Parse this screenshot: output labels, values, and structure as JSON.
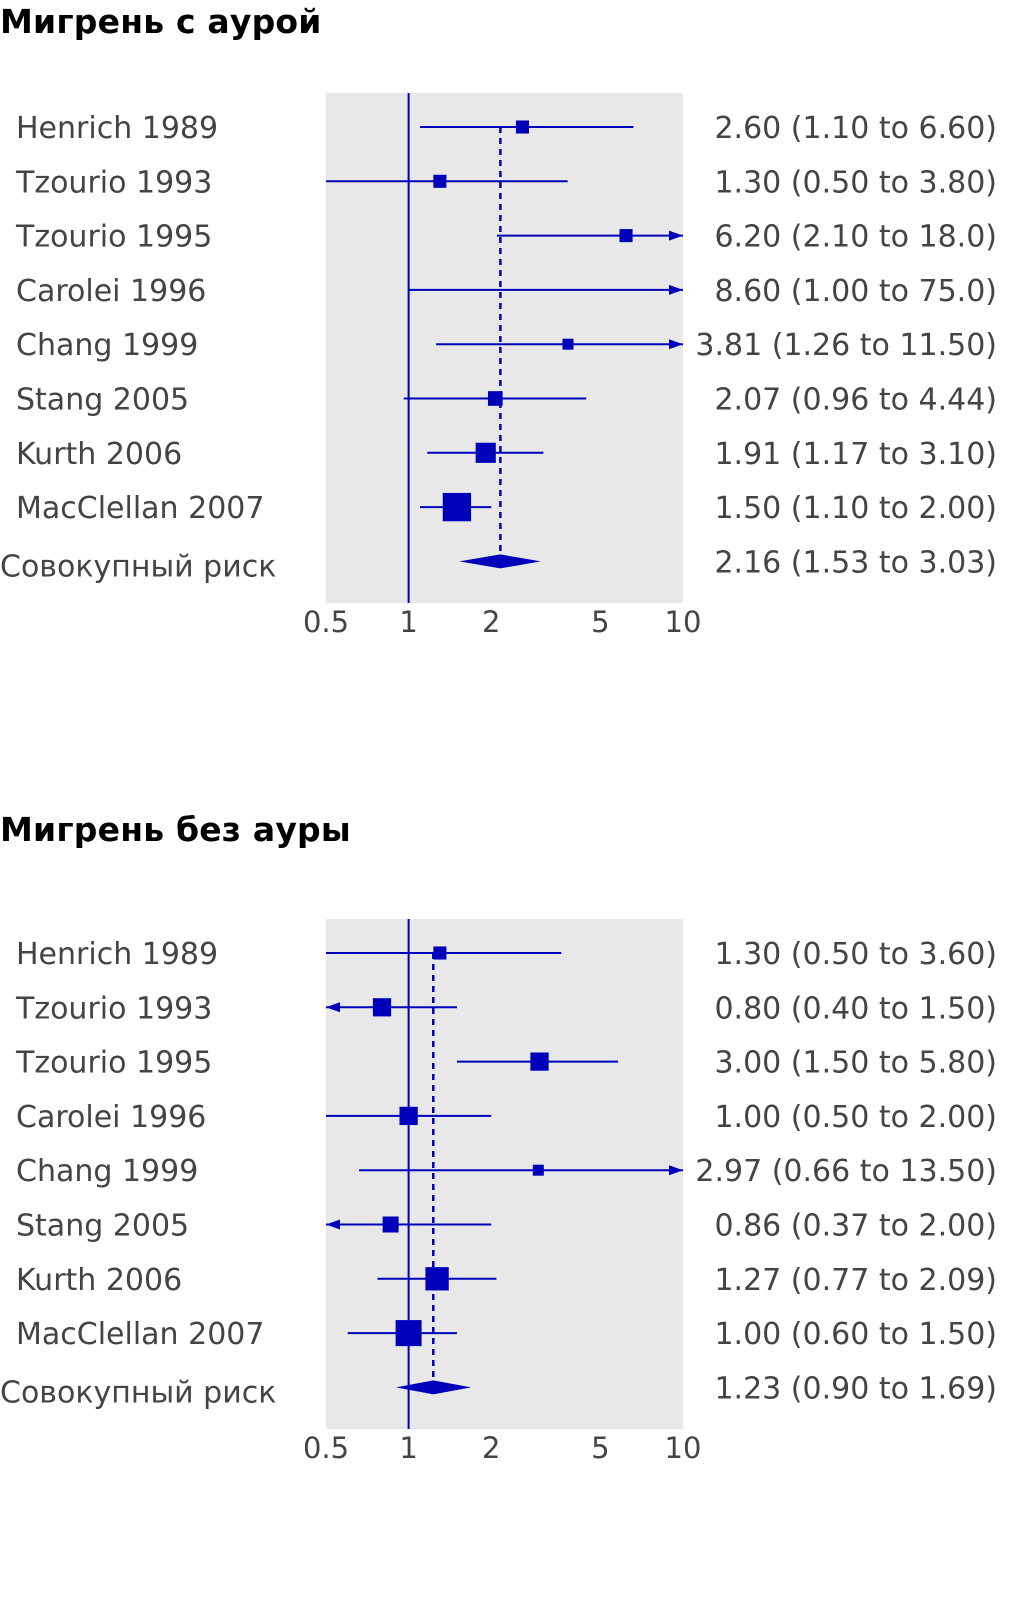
{
  "chart_data": [
    {
      "type": "forest",
      "title": "Мигрень с аурой",
      "x_scale": "log",
      "xlim": [
        0.5,
        10
      ],
      "xticks": [
        0.5,
        1,
        2,
        5,
        10
      ],
      "xtick_labels": [
        "0.5",
        "1",
        "2",
        "5",
        "10"
      ],
      "reference_line": 1,
      "pooled_label": "Совокупный риск",
      "studies": [
        {
          "name": "Henrich 1989",
          "estimate": 2.6,
          "lower": 1.1,
          "upper": 6.6,
          "weight": 2,
          "ci_text": "2.60 (1.10 to 6.60)"
        },
        {
          "name": "Tzourio 1993",
          "estimate": 1.3,
          "lower": 0.5,
          "upper": 3.8,
          "weight": 2,
          "ci_text": "1.30 (0.50 to 3.80)"
        },
        {
          "name": "Tzourio 1995",
          "estimate": 6.2,
          "lower": 2.1,
          "upper": 18.0,
          "weight": 2,
          "ci_text": "6.20 (2.10 to 18.0)"
        },
        {
          "name": "Carolei 1996",
          "estimate": 8.6,
          "lower": 1.0,
          "upper": 75.0,
          "weight": 0,
          "ci_text": "8.60 (1.00 to 75.0)"
        },
        {
          "name": "Chang 1999",
          "estimate": 3.81,
          "lower": 1.26,
          "upper": 11.5,
          "weight": 1,
          "ci_text": "3.81 (1.26 to 11.50)"
        },
        {
          "name": "Stang 2005",
          "estimate": 2.07,
          "lower": 0.96,
          "upper": 4.44,
          "weight": 3,
          "ci_text": "2.07 (0.96 to 4.44)"
        },
        {
          "name": "Kurth 2006",
          "estimate": 1.91,
          "lower": 1.17,
          "upper": 3.1,
          "weight": 8,
          "ci_text": "1.91 (1.17 to 3.10)"
        },
        {
          "name": "MacClellan 2007",
          "estimate": 1.5,
          "lower": 1.1,
          "upper": 2.0,
          "weight": 20,
          "ci_text": "1.50 (1.10 to 2.00)"
        }
      ],
      "pooled": {
        "estimate": 2.16,
        "lower": 1.53,
        "upper": 3.03,
        "ci_text": "2.16 (1.53 to 3.03)"
      }
    },
    {
      "type": "forest",
      "title": "Мигрень без ауры",
      "x_scale": "log",
      "xlim": [
        0.5,
        10
      ],
      "xticks": [
        0.5,
        1,
        2,
        5,
        10
      ],
      "xtick_labels": [
        "0.5",
        "1",
        "2",
        "5",
        "10"
      ],
      "reference_line": 1,
      "pooled_label": "Совокупный риск",
      "studies": [
        {
          "name": "Henrich 1989",
          "estimate": 1.3,
          "lower": 0.5,
          "upper": 3.6,
          "weight": 2,
          "ci_text": "1.30 (0.50 to 3.60)"
        },
        {
          "name": "Tzourio 1993",
          "estimate": 0.8,
          "lower": 0.4,
          "upper": 1.5,
          "weight": 6,
          "ci_text": "0.80 (0.40 to 1.50)"
        },
        {
          "name": "Tzourio 1995",
          "estimate": 3.0,
          "lower": 1.5,
          "upper": 5.8,
          "weight": 6,
          "ci_text": "3.00 (1.50 to 5.80)"
        },
        {
          "name": "Carolei 1996",
          "estimate": 1.0,
          "lower": 0.5,
          "upper": 2.0,
          "weight": 6,
          "ci_text": "1.00 (0.50 to 2.00)"
        },
        {
          "name": "Chang 1999",
          "estimate": 2.97,
          "lower": 0.66,
          "upper": 13.5,
          "weight": 1,
          "ci_text": "2.97 (0.66 to 13.50)"
        },
        {
          "name": "Stang 2005",
          "estimate": 0.86,
          "lower": 0.37,
          "upper": 2.0,
          "weight": 4,
          "ci_text": "0.86 (0.37 to 2.00)"
        },
        {
          "name": "Kurth 2006",
          "estimate": 1.27,
          "lower": 0.77,
          "upper": 2.09,
          "weight": 12,
          "ci_text": "1.27 (0.77 to 2.09)"
        },
        {
          "name": "MacClellan 2007",
          "estimate": 1.0,
          "lower": 0.6,
          "upper": 1.5,
          "weight": 16,
          "ci_text": "1.00 (0.60 to 1.50)"
        }
      ],
      "pooled": {
        "estimate": 1.23,
        "lower": 0.9,
        "upper": 1.69,
        "ci_text": "1.23 (0.90 to 1.69)"
      }
    }
  ],
  "colors": {
    "mark": "#0000bb",
    "plot_background": "#e8e8e8",
    "label_text": "#444444",
    "title_text": "#000000"
  }
}
